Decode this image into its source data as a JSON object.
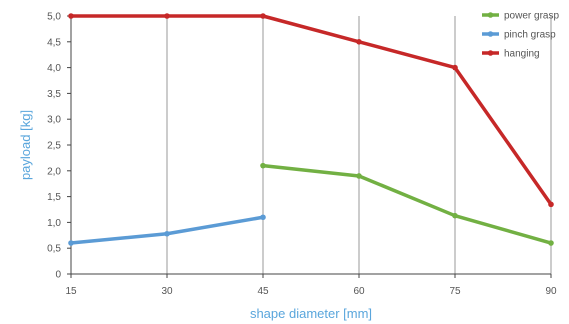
{
  "chart_data": {
    "type": "line",
    "title": "",
    "xlabel": "shape diameter [mm]",
    "ylabel": "payload [kg]",
    "x_ticks": [
      "15",
      "30",
      "45",
      "60",
      "75",
      "90"
    ],
    "y_ticks": [
      "0",
      "0,5",
      "1,0",
      "1,5",
      "2,0",
      "2,5",
      "3,0",
      "3,5",
      "4,0",
      "4,5",
      "5,0"
    ],
    "xlim": [
      15,
      90
    ],
    "ylim": [
      0,
      5
    ],
    "grid": "vertical",
    "legend_position": "top-right",
    "series": [
      {
        "name": "power grasp",
        "color": "#72b043",
        "x": [
          45,
          60,
          75,
          90
        ],
        "y": [
          2.1,
          1.9,
          1.13,
          0.6
        ]
      },
      {
        "name": "pinch grasp",
        "color": "#5b9bd5",
        "x": [
          15,
          30,
          45
        ],
        "y": [
          0.6,
          0.78,
          1.1
        ]
      },
      {
        "name": "hanging",
        "color": "#c62828",
        "x": [
          15,
          30,
          45,
          60,
          75,
          90
        ],
        "y": [
          5.0,
          5.0,
          5.0,
          4.5,
          4.0,
          1.35
        ]
      }
    ]
  }
}
